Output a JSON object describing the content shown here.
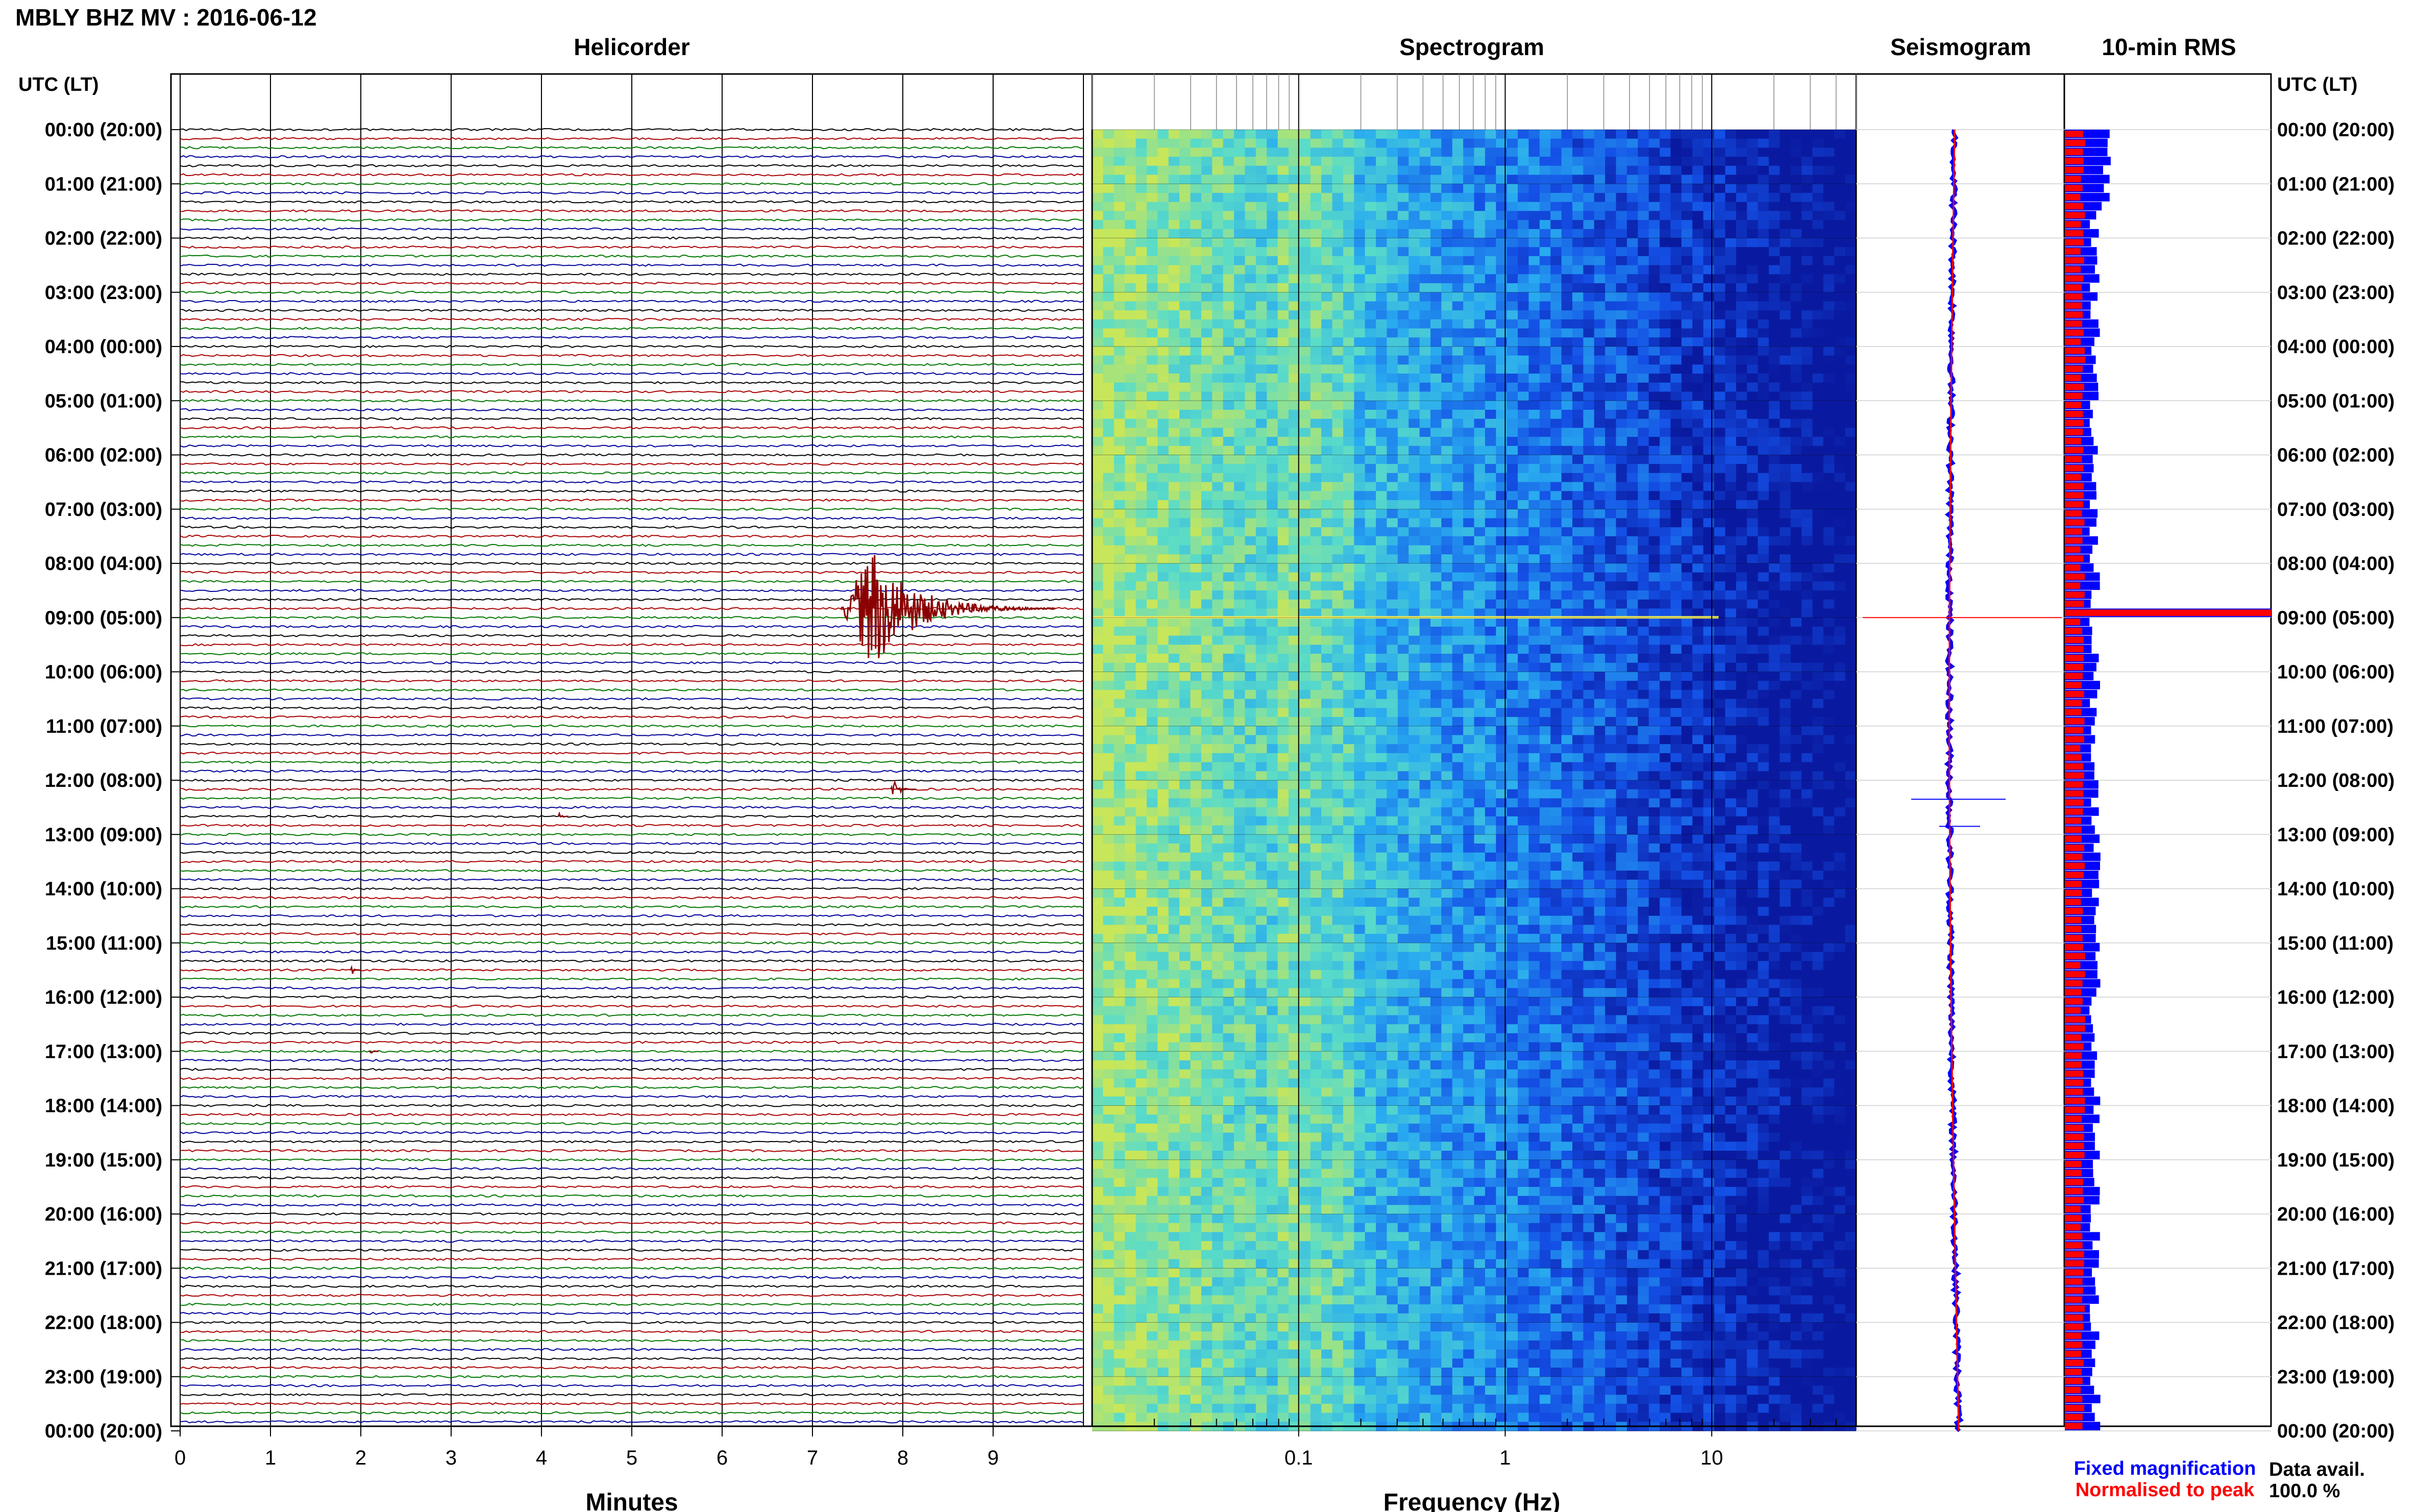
{
  "header": {
    "station_title": "MBLY BHZ MV : 2016-06-12",
    "utc_lt_label": "UTC (LT)"
  },
  "panels": {
    "helicorder": "Helicorder",
    "spectrogram": "Spectrogram",
    "seismogram": "Seismogram",
    "rms": "10-min RMS"
  },
  "axes": {
    "minutes_label": "Minutes",
    "frequency_label": "Frequency (Hz)"
  },
  "legend": {
    "fixed": "Fixed magnification",
    "normalised": "Normalised to peak",
    "fixed_color": "#0000ff",
    "normalised_color": "#ff0000"
  },
  "availability": {
    "label": "Data avail.",
    "value": "100.0 %"
  },
  "colors": {
    "trace_cycle": [
      "#000000",
      "#aa0000",
      "#007700",
      "#000099"
    ],
    "event": "#8b0000",
    "spectro_low": "#0a1aa0",
    "spectro_high": "#d8e040"
  },
  "chart_data": {
    "type": "helicorder",
    "time_labels": [
      "00:00 (20:00)",
      "01:00 (21:00)",
      "02:00 (22:00)",
      "03:00 (23:00)",
      "04:00 (00:00)",
      "05:00 (01:00)",
      "06:00 (02:00)",
      "07:00 (03:00)",
      "08:00 (04:00)",
      "09:00 (05:00)",
      "10:00 (06:00)",
      "11:00 (07:00)",
      "12:00 (08:00)",
      "13:00 (09:00)",
      "14:00 (10:00)",
      "15:00 (11:00)",
      "16:00 (12:00)",
      "17:00 (13:00)",
      "18:00 (14:00)",
      "19:00 (15:00)",
      "20:00 (16:00)",
      "21:00 (17:00)",
      "22:00 (18:00)",
      "23:00 (19:00)",
      "00:00 (20:00)"
    ],
    "minute_ticks": [
      "0",
      "1",
      "2",
      "3",
      "4",
      "5",
      "6",
      "7",
      "8",
      "9"
    ],
    "minute_range": [
      0,
      10
    ],
    "frequency_ticks": [
      {
        "value": 0.1,
        "label": "0.1"
      },
      {
        "value": 1,
        "label": "1"
      },
      {
        "value": 10,
        "label": "10"
      }
    ],
    "frequency_range": [
      0.01,
      50
    ],
    "traces_per_hour": 6,
    "events": [
      {
        "hour": 8.83,
        "minute": 7.6,
        "amplitude": "large"
      },
      {
        "hour": 12.17,
        "minute": 7.9,
        "amplitude": "small"
      },
      {
        "hour": 12.67,
        "minute": 4.2,
        "amplitude": "tiny"
      },
      {
        "hour": 15.5,
        "minute": 1.9,
        "amplitude": "tiny"
      },
      {
        "hour": 17.0,
        "minute": 2.1,
        "amplitude": "tiny"
      }
    ],
    "rms_peak_hour": 9.0
  }
}
